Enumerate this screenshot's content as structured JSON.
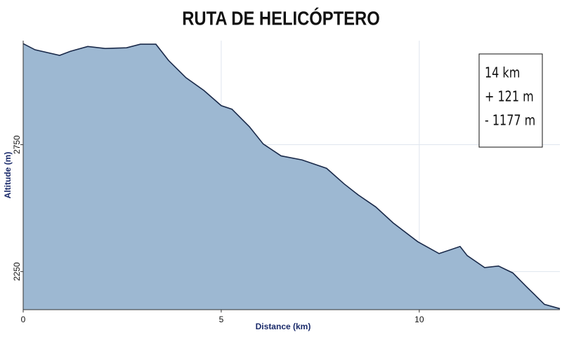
{
  "chart_data": {
    "type": "area",
    "title": "RUTA DE HELICÓPTERO",
    "x_label": "Distance (km)",
    "y_label": "Altitude (m)",
    "x": [
      0,
      0.3,
      0.92,
      1.19,
      1.63,
      2.07,
      2.61,
      2.96,
      3.35,
      3.67,
      4.11,
      4.56,
      5.0,
      5.27,
      5.71,
      6.06,
      6.51,
      7.04,
      7.66,
      8.1,
      8.46,
      8.9,
      9.34,
      9.96,
      10.5,
      11.03,
      11.21,
      11.65,
      12.0,
      12.36,
      12.71,
      13.16,
      13.55
    ],
    "values": [
      3148,
      3124,
      3102,
      3118,
      3137,
      3129,
      3132,
      3146,
      3146,
      3082,
      3014,
      2964,
      2904,
      2890,
      2821,
      2753,
      2706,
      2690,
      2657,
      2596,
      2552,
      2505,
      2442,
      2368,
      2321,
      2349,
      2313,
      2266,
      2272,
      2245,
      2190,
      2121,
      2104
    ],
    "color": "#9db8d2",
    "line_color": "#1a2a4a",
    "xlim": [
      0,
      13.55
    ],
    "ylim": [
      2100,
      3160
    ],
    "xticks": [
      0,
      5,
      10
    ],
    "yticks": [
      2250,
      2750
    ],
    "grid": true,
    "annotations": [
      "14 km",
      "+ 121 m",
      "- 1177 m"
    ]
  }
}
